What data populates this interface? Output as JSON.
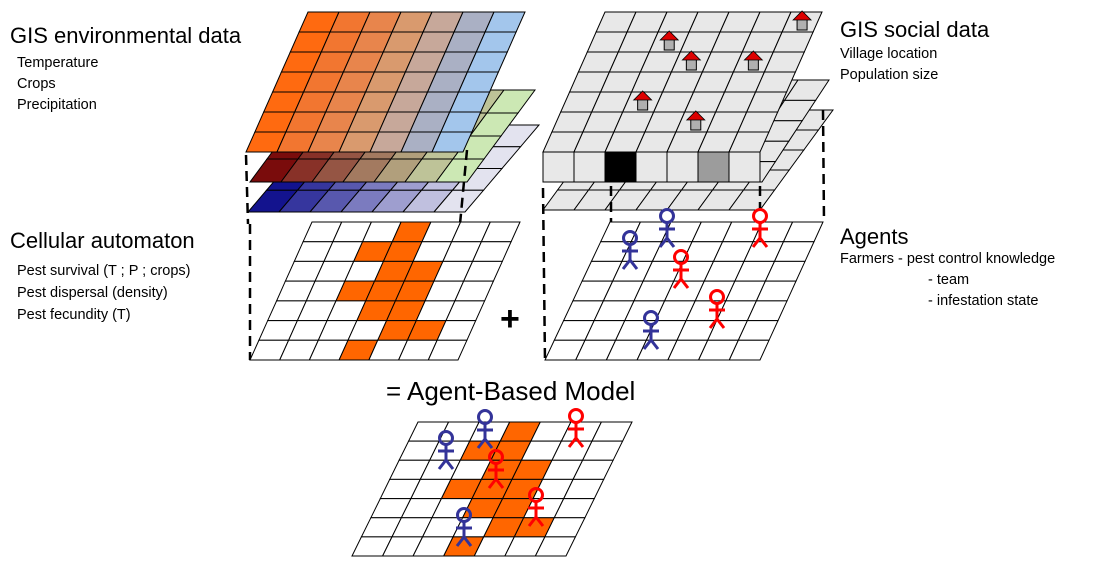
{
  "env": {
    "title": "GIS environmental data",
    "items": [
      "Temperature",
      "Crops",
      "Precipitation"
    ]
  },
  "social": {
    "title": "GIS social data",
    "items": [
      "Village location",
      "Population size"
    ]
  },
  "ca": {
    "title": "Cellular automaton",
    "items": [
      "Pest survival (T ; P ; crops)",
      "Pest dispersal (density)",
      "Pest fecundity (T)"
    ]
  },
  "agents": {
    "title": "Agents",
    "line1": "Farmers - pest control knowledge",
    "line2": "- team",
    "line3": "- infestation state"
  },
  "plus": "+",
  "result": "= Agent-Based Model",
  "colors": {
    "orange": "#ff6600",
    "agent_blue": "#333399",
    "agent_red": "#ff0000",
    "cell_gray": "#e8e8e8",
    "village_roof": "#dd0000",
    "village_wall": "#b0b0b0"
  }
}
